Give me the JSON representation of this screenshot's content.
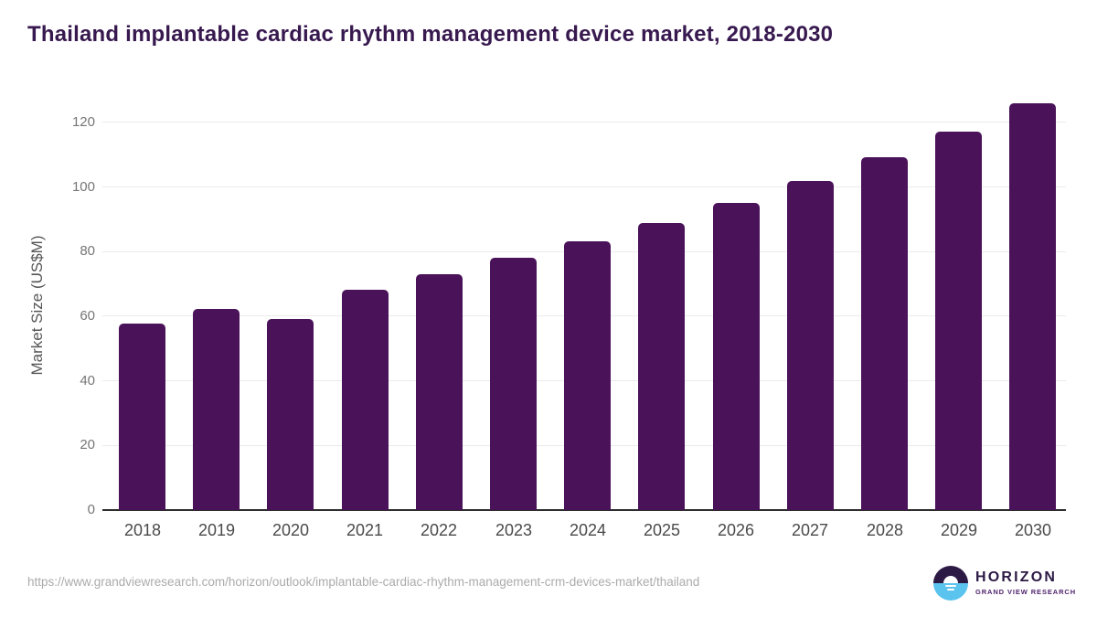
{
  "title": "Thailand implantable cardiac rhythm management device market, 2018-2030",
  "footer": {
    "source_url": "https://www.grandviewresearch.com/horizon/outlook/implantable-cardiac-rhythm-management-crm-devices-market/thailand",
    "logo": {
      "wordmark": "HORIZON",
      "subtitle": "GRAND VIEW RESEARCH"
    }
  },
  "colors": {
    "bar": "#4a1259",
    "title_text": "#38194f",
    "gridline": "#ebebeb",
    "axis_line": "#2d2d2d",
    "y_tick_text": "#767676",
    "x_tick_text": "#4a4a4a",
    "url_text": "#ababab",
    "logo_dark": "#2c1a45",
    "logo_blue": "#5ac3ee",
    "logo_subtitle_text": "#50246e"
  },
  "chart_data": {
    "type": "bar",
    "title": "Thailand implantable cardiac rhythm management device market, 2018-2030",
    "categories": [
      "2018",
      "2019",
      "2020",
      "2021",
      "2022",
      "2023",
      "2024",
      "2025",
      "2026",
      "2027",
      "2028",
      "2029",
      "2030"
    ],
    "values": [
      57.8,
      62.2,
      59.1,
      68.3,
      73.1,
      78.0,
      83.3,
      88.8,
      95.0,
      101.8,
      109.2,
      117.2,
      125.9
    ],
    "xlabel": "",
    "ylabel": "Market Size (US$M)",
    "ylim": [
      0,
      130
    ],
    "yticks": [
      0,
      20,
      40,
      60,
      80,
      100,
      120
    ],
    "grid": true,
    "legend": false,
    "bar_color": "#4a1259",
    "units": "US$M"
  }
}
